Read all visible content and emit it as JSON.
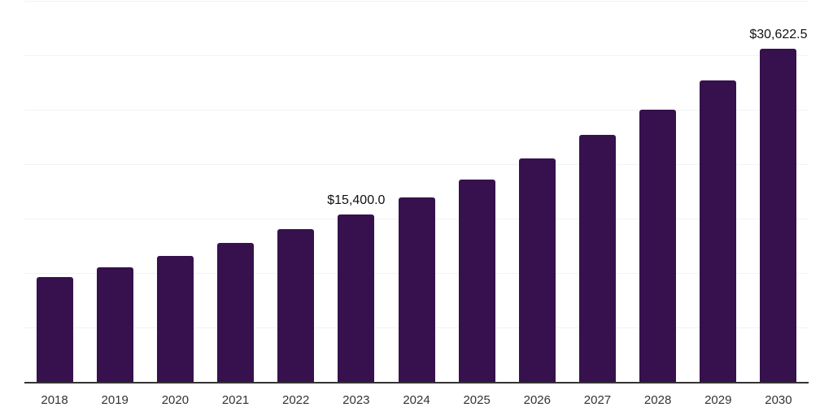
{
  "chart_data": {
    "type": "bar",
    "title": "",
    "xlabel": "",
    "ylabel": "",
    "categories": [
      "2018",
      "2019",
      "2020",
      "2021",
      "2022",
      "2023",
      "2024",
      "2025",
      "2026",
      "2027",
      "2028",
      "2029",
      "2030"
    ],
    "values": [
      9650,
      10520,
      11570,
      12760,
      14030,
      15400,
      16950,
      18600,
      20550,
      22650,
      25000,
      27650,
      30622.5
    ],
    "value_labels": [
      {
        "category": "2023",
        "text": "$15,400.0"
      },
      {
        "category": "2030",
        "text": "$30,622.5"
      }
    ],
    "ylim": [
      0,
      35000
    ],
    "gridline_step": 5000,
    "grid": "horizontal",
    "legend": "none",
    "colors": {
      "bar": "#36114E",
      "axis_line": "#333333",
      "gridline": "#f2f2f2",
      "value_label": "#111111",
      "tick_label": "#333333",
      "background": "#ffffff"
    }
  }
}
